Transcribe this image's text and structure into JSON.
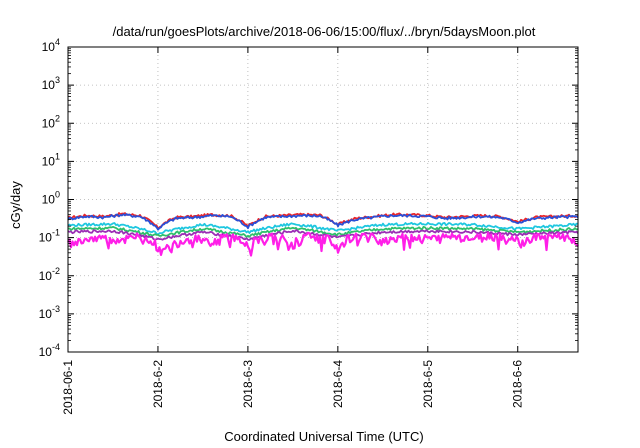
{
  "chart_data": {
    "type": "line",
    "title": "/data/run/goesPlots/archive/2018-06-06/15:00/flux/../bryn/5daysMoon.plot",
    "xlabel": "Coordinated Universal Time (UTC)",
    "ylabel": "cGy/day",
    "yscale": "log",
    "ylim": [
      0.0001,
      10000
    ],
    "xlim": [
      "2018-06-01",
      "2018-06-06 16:00"
    ],
    "x_ticks": [
      "2018-06-1",
      "2018-6-2",
      "2018-6-3",
      "2018-6-4",
      "2018-6-5",
      "2018-6-6"
    ],
    "y_ticks": [
      {
        "base": "10",
        "exp": "-4"
      },
      {
        "base": "10",
        "exp": "-3"
      },
      {
        "base": "10",
        "exp": "-2"
      },
      {
        "base": "10",
        "exp": "-1"
      },
      {
        "base": "10",
        "exp": "0"
      },
      {
        "base": "10",
        "exp": "1"
      },
      {
        "base": "10",
        "exp": "2"
      },
      {
        "base": "10",
        "exp": "3"
      },
      {
        "base": "10",
        "exp": "4"
      }
    ],
    "grid": true,
    "x_day_positions": [
      0,
      1,
      2,
      3,
      4,
      5
    ],
    "x_end": 5.67,
    "series": [
      {
        "color": "#e8252a",
        "base": 0.35,
        "points": [
          [
            0,
            0.33
          ],
          [
            0.2,
            0.38
          ],
          [
            0.4,
            0.36
          ],
          [
            0.6,
            0.42
          ],
          [
            0.8,
            0.38
          ],
          [
            1.0,
            0.18
          ],
          [
            1.2,
            0.34
          ],
          [
            1.4,
            0.36
          ],
          [
            1.6,
            0.4
          ],
          [
            1.8,
            0.38
          ],
          [
            2.0,
            0.2
          ],
          [
            2.2,
            0.36
          ],
          [
            2.4,
            0.38
          ],
          [
            2.6,
            0.4
          ],
          [
            2.8,
            0.39
          ],
          [
            3.0,
            0.22
          ],
          [
            3.2,
            0.32
          ],
          [
            3.4,
            0.36
          ],
          [
            3.6,
            0.4
          ],
          [
            3.8,
            0.4
          ],
          [
            4.0,
            0.38
          ],
          [
            4.2,
            0.34
          ],
          [
            4.4,
            0.36
          ],
          [
            4.6,
            0.38
          ],
          [
            4.8,
            0.36
          ],
          [
            5.0,
            0.26
          ],
          [
            5.2,
            0.34
          ],
          [
            5.4,
            0.36
          ],
          [
            5.67,
            0.38
          ]
        ]
      },
      {
        "color": "#2a4fd6",
        "base": 0.33,
        "points": [
          [
            0,
            0.31
          ],
          [
            0.2,
            0.36
          ],
          [
            0.4,
            0.34
          ],
          [
            0.6,
            0.4
          ],
          [
            0.8,
            0.36
          ],
          [
            1.0,
            0.17
          ],
          [
            1.2,
            0.32
          ],
          [
            1.4,
            0.34
          ],
          [
            1.6,
            0.38
          ],
          [
            1.8,
            0.36
          ],
          [
            2.0,
            0.19
          ],
          [
            2.2,
            0.34
          ],
          [
            2.4,
            0.36
          ],
          [
            2.6,
            0.38
          ],
          [
            2.8,
            0.37
          ],
          [
            3.0,
            0.21
          ],
          [
            3.2,
            0.3
          ],
          [
            3.4,
            0.34
          ],
          [
            3.6,
            0.38
          ],
          [
            3.8,
            0.38
          ],
          [
            4.0,
            0.36
          ],
          [
            4.2,
            0.32
          ],
          [
            4.4,
            0.34
          ],
          [
            4.6,
            0.36
          ],
          [
            4.8,
            0.34
          ],
          [
            5.0,
            0.25
          ],
          [
            5.2,
            0.32
          ],
          [
            5.4,
            0.34
          ],
          [
            5.67,
            0.36
          ]
        ]
      },
      {
        "color": "#1fc7e0",
        "base": 0.22,
        "points": [
          [
            0,
            0.21
          ],
          [
            0.5,
            0.23
          ],
          [
            1.0,
            0.13
          ],
          [
            1.5,
            0.22
          ],
          [
            2.0,
            0.14
          ],
          [
            2.5,
            0.23
          ],
          [
            3.0,
            0.15
          ],
          [
            3.5,
            0.22
          ],
          [
            4.0,
            0.23
          ],
          [
            4.5,
            0.22
          ],
          [
            5.0,
            0.17
          ],
          [
            5.67,
            0.22
          ]
        ]
      },
      {
        "color": "#2fbf6a",
        "base": 0.17,
        "points": [
          [
            0,
            0.17
          ],
          [
            0.5,
            0.18
          ],
          [
            1.0,
            0.11
          ],
          [
            1.5,
            0.17
          ],
          [
            2.0,
            0.11
          ],
          [
            2.5,
            0.18
          ],
          [
            3.0,
            0.12
          ],
          [
            3.5,
            0.17
          ],
          [
            4.0,
            0.18
          ],
          [
            4.5,
            0.17
          ],
          [
            5.0,
            0.14
          ],
          [
            5.67,
            0.17
          ]
        ]
      },
      {
        "color": "#9a2fb5",
        "base": 0.14,
        "points": [
          [
            0,
            0.14
          ],
          [
            0.5,
            0.15
          ],
          [
            1.0,
            0.09
          ],
          [
            1.5,
            0.14
          ],
          [
            2.0,
            0.09
          ],
          [
            2.5,
            0.15
          ],
          [
            3.0,
            0.1
          ],
          [
            3.5,
            0.14
          ],
          [
            4.0,
            0.15
          ],
          [
            4.5,
            0.14
          ],
          [
            5.0,
            0.12
          ],
          [
            5.67,
            0.14
          ]
        ]
      },
      {
        "color": "#ff1fe8",
        "base": 0.11,
        "points": [
          [
            0,
            0.1
          ],
          [
            0.1,
            0.07
          ],
          [
            0.3,
            0.11
          ],
          [
            0.5,
            0.08
          ],
          [
            0.7,
            0.11
          ],
          [
            0.9,
            0.09
          ],
          [
            1.05,
            0.04
          ],
          [
            1.2,
            0.07
          ],
          [
            1.4,
            0.1
          ],
          [
            1.6,
            0.08
          ],
          [
            1.8,
            0.11
          ],
          [
            2.0,
            0.06
          ],
          [
            2.1,
            0.09
          ],
          [
            2.3,
            0.11
          ],
          [
            2.5,
            0.07
          ],
          [
            2.7,
            0.11
          ],
          [
            2.9,
            0.09
          ],
          [
            3.0,
            0.06
          ],
          [
            3.1,
            0.09
          ],
          [
            3.3,
            0.11
          ],
          [
            3.5,
            0.08
          ],
          [
            3.7,
            0.11
          ],
          [
            3.9,
            0.1
          ],
          [
            4.1,
            0.09
          ],
          [
            4.3,
            0.11
          ],
          [
            4.5,
            0.09
          ],
          [
            4.7,
            0.11
          ],
          [
            4.9,
            0.1
          ],
          [
            5.05,
            0.07
          ],
          [
            5.2,
            0.1
          ],
          [
            5.4,
            0.11
          ],
          [
            5.67,
            0.09
          ]
        ]
      }
    ]
  }
}
